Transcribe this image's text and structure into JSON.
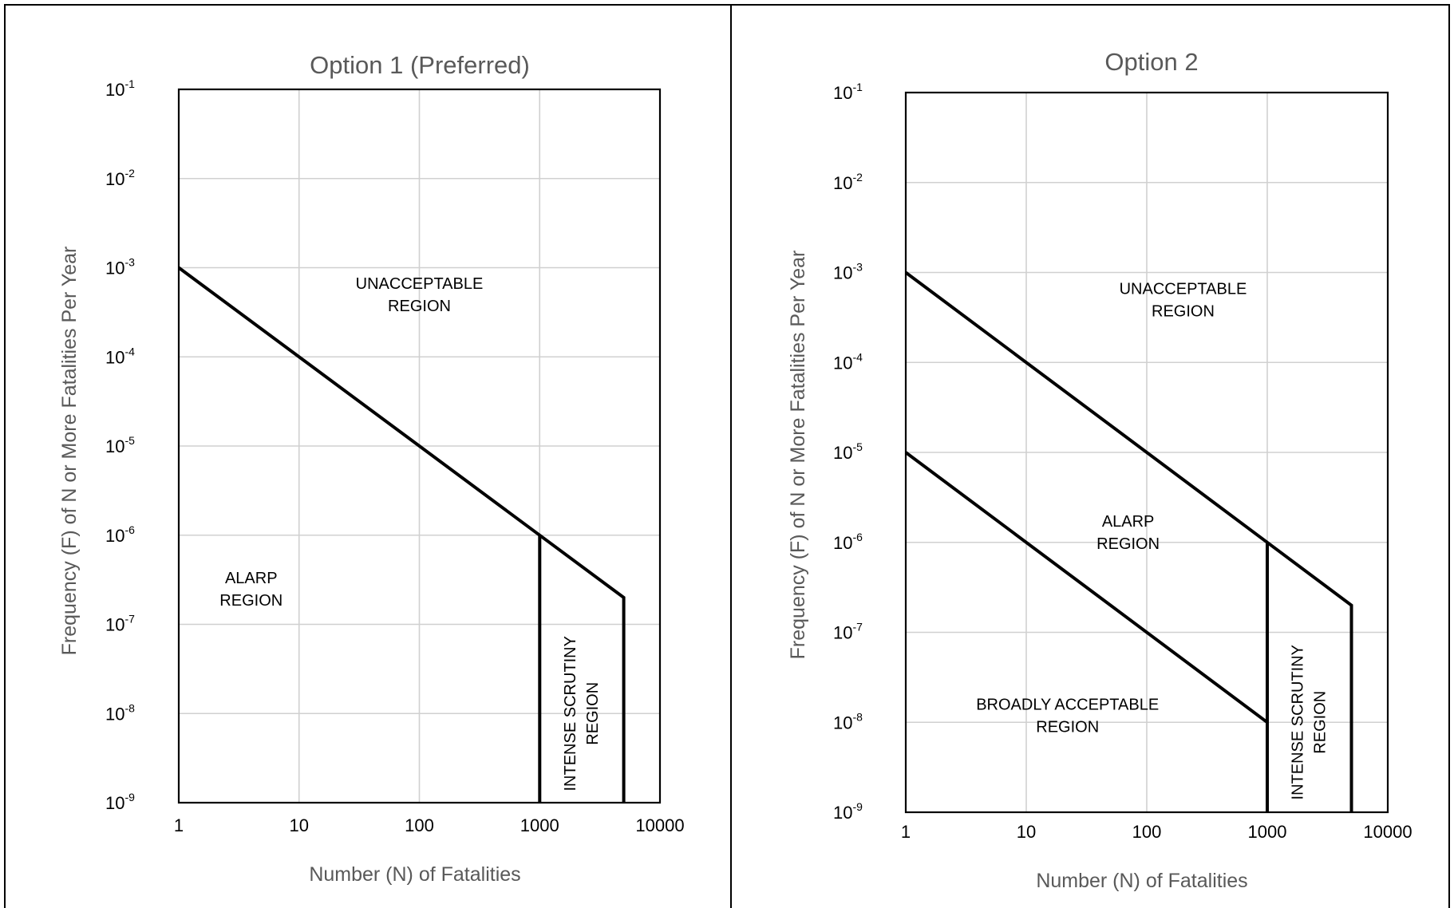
{
  "chart_data": [
    {
      "type": "line",
      "title": "Option 1 (Preferred)",
      "xlabel": "Number  (N) of Fatalities",
      "ylabel": "Frequency (F) of N or More Fatalities Per Year",
      "xscale": "log",
      "yscale": "log",
      "xlim": [
        1,
        10000
      ],
      "ylim": [
        1e-09,
        0.1
      ],
      "grid": true,
      "x_ticks": [
        "1",
        "10",
        "100",
        "1000",
        "10000"
      ],
      "y_ticks": [
        {
          "base": "10",
          "exp": "-1"
        },
        {
          "base": "10",
          "exp": "-2"
        },
        {
          "base": "10",
          "exp": "-3"
        },
        {
          "base": "10",
          "exp": "-4"
        },
        {
          "base": "10",
          "exp": "-5"
        },
        {
          "base": "10",
          "exp": "-6"
        },
        {
          "base": "10",
          "exp": "-7"
        },
        {
          "base": "10",
          "exp": "-8"
        },
        {
          "base": "10",
          "exp": "-9"
        }
      ],
      "series": [
        {
          "points": [
            [
              1,
              0.001
            ],
            [
              1000,
              1e-06
            ],
            [
              5000,
              2e-07
            ],
            [
              5000,
              1e-09
            ]
          ]
        },
        {
          "points": [
            [
              1000,
              1e-06
            ],
            [
              1000,
              1e-09
            ]
          ]
        }
      ],
      "regions": [
        {
          "lines": [
            "UNACCEPTABLE",
            "REGION"
          ],
          "x": 100,
          "y": 0.0005
        },
        {
          "lines": [
            "ALARP",
            "REGION"
          ],
          "x": 4,
          "y": 2.5e-07
        },
        {
          "lines": [
            "INTENSE SCRUTINY",
            "REGION"
          ],
          "x": 2200,
          "y": 1e-08,
          "rotated": true
        }
      ]
    },
    {
      "type": "line",
      "title": "Option 2",
      "xlabel": "Number  (N) of Fatalities",
      "ylabel": "Frequency (F) of N or More Fatalities Per Year",
      "xscale": "log",
      "yscale": "log",
      "xlim": [
        1,
        10000
      ],
      "ylim": [
        1e-09,
        0.1
      ],
      "grid": true,
      "x_ticks": [
        "1",
        "10",
        "100",
        "1000",
        "10000"
      ],
      "y_ticks": [
        {
          "base": "10",
          "exp": "-1"
        },
        {
          "base": "10",
          "exp": "-2"
        },
        {
          "base": "10",
          "exp": "-3"
        },
        {
          "base": "10",
          "exp": "-4"
        },
        {
          "base": "10",
          "exp": "-5"
        },
        {
          "base": "10",
          "exp": "-6"
        },
        {
          "base": "10",
          "exp": "-7"
        },
        {
          "base": "10",
          "exp": "-8"
        },
        {
          "base": "10",
          "exp": "-9"
        }
      ],
      "series": [
        {
          "points": [
            [
              1,
              0.001
            ],
            [
              1000,
              1e-06
            ],
            [
              5000,
              2e-07
            ],
            [
              5000,
              1e-09
            ]
          ]
        },
        {
          "points": [
            [
              1,
              1e-05
            ],
            [
              1000,
              1e-08
            ],
            [
              1000,
              1e-06
            ]
          ]
        },
        {
          "points": [
            [
              1000,
              1e-08
            ],
            [
              1000,
              1e-09
            ]
          ]
        }
      ],
      "regions": [
        {
          "lines": [
            "UNACCEPTABLE",
            "REGION"
          ],
          "x": 200,
          "y": 0.0005
        },
        {
          "lines": [
            "ALARP",
            "REGION"
          ],
          "x": 70,
          "y": 1.3e-06
        },
        {
          "lines": [
            "BROADLY ACCEPTABLE",
            "REGION"
          ],
          "x": 22,
          "y": 1.2e-08
        },
        {
          "lines": [
            "INTENSE SCRUTINY",
            "REGION"
          ],
          "x": 2200,
          "y": 1e-08,
          "rotated": true
        }
      ]
    }
  ]
}
